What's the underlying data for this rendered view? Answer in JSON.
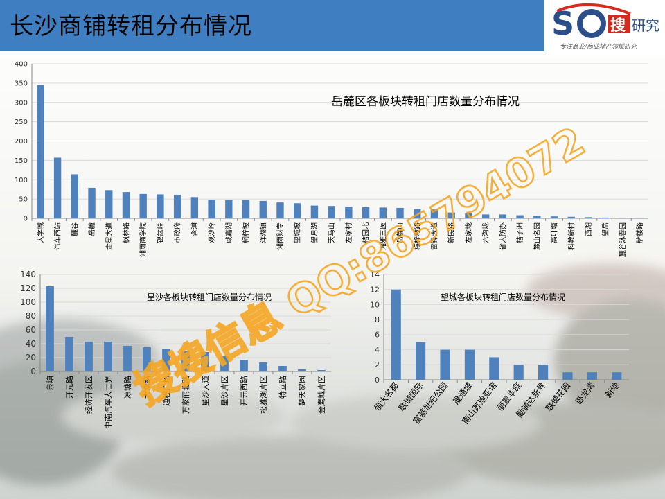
{
  "page": {
    "title": "长沙商铺转租分布情况",
    "logo_tagline": "专注商业/商业地产领域研究"
  },
  "watermark": {
    "text": "搜搜信息 QQ:865794072",
    "color": "#f5a623"
  },
  "chart_data": [
    {
      "type": "bar",
      "title": "岳麓区各板块转租门店数量分布情况",
      "categories": [
        "大学城",
        "汽车西站",
        "麓谷",
        "岳麓",
        "金星大道",
        "枫林路",
        "湘雨商学院",
        "银盆岭",
        "市政府",
        "含浦",
        "观沙岭",
        "咸嘉湖",
        "桐梓坡",
        "洋湖镇",
        "湘雨财专",
        "望城坡",
        "望月湖",
        "天马山",
        "左家村",
        "桔园北",
        "湘雅三医",
        "岳麓山",
        "梅梓坡路",
        "雷锋大道",
        "新民路",
        "左家垅",
        "六沟垅",
        "省人防办",
        "桔子洲",
        "麓山名园",
        "高叶塘",
        "科教新村",
        "西湖",
        "望岳",
        "麓谷沐春园",
        "牌楼路"
      ],
      "values": [
        345,
        157,
        114,
        79,
        73,
        68,
        63,
        62,
        61,
        55,
        48,
        47,
        47,
        45,
        41,
        39,
        33,
        32,
        30,
        29,
        28,
        27,
        24,
        23,
        15,
        13,
        10,
        10,
        8,
        6,
        5,
        4,
        3,
        2,
        1,
        1
      ],
      "ylim": [
        0,
        400
      ],
      "yticks": [
        0,
        50,
        100,
        150,
        200,
        250,
        300,
        350,
        400
      ],
      "color": "#4f81bd",
      "grid": true
    },
    {
      "type": "bar",
      "title": "星沙各板块转租门店数量分布情况",
      "categories": [
        "泉塘",
        "开元路",
        "经济开发区",
        "中南汽车大世界",
        "凉塘路",
        "大众路",
        "通程广场",
        "万家丽北路",
        "星沙大道",
        "星沙片区",
        "开元西路",
        "松雅湖片区",
        "特立路",
        "楚天家园",
        "金鹰城片区"
      ],
      "values": [
        123,
        50,
        43,
        43,
        37,
        35,
        32,
        30,
        28,
        22,
        17,
        13,
        8,
        3,
        2
      ],
      "ylim": [
        0,
        140
      ],
      "yticks": [
        0,
        20,
        40,
        60,
        80,
        100,
        120,
        140
      ],
      "color": "#4f81bd",
      "grid": true
    },
    {
      "type": "bar",
      "title": "望城各板块转租门店数量分布情况",
      "categories": [
        "恒大名都",
        "联诚国际",
        "富基世纪公园",
        "晟通城",
        "南山苏迪亚诺",
        "丽景华庭",
        "勤诚达新界",
        "联诚花园",
        "卧龙湾",
        "新地"
      ],
      "values": [
        12,
        5,
        4,
        4,
        3,
        2,
        2,
        1,
        1,
        1
      ],
      "ylim": [
        0,
        14
      ],
      "yticks": [
        0,
        2,
        4,
        6,
        8,
        10,
        12,
        14
      ],
      "color": "#4f81bd",
      "grid": true
    }
  ]
}
